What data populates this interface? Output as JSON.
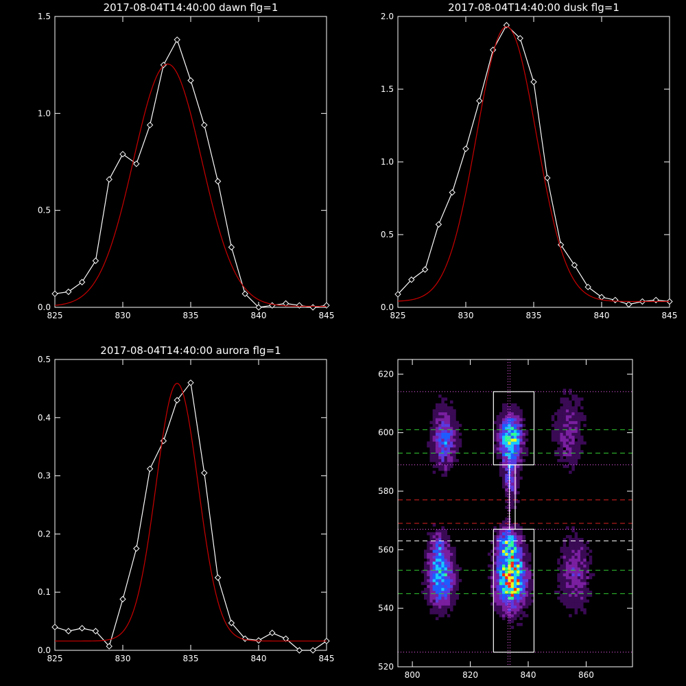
{
  "chart_data": [
    {
      "type": "line",
      "title": "2017-08-04T14:40:00 dawn flg=1",
      "xlim": [
        825,
        845
      ],
      "ylim": [
        0,
        1.5
      ],
      "xticks": [
        825,
        830,
        835,
        840,
        845
      ],
      "xtick_labels": [
        "825",
        "830",
        "835",
        "840",
        "845"
      ],
      "yticks": [
        0,
        0.5,
        1.0,
        1.5
      ],
      "ytick_labels": [
        "0.0",
        "0.5",
        "1.0",
        "1.5"
      ],
      "series": [
        {
          "style": "data",
          "color": "#ffffff",
          "marker": "diamond",
          "x": [
            825,
            826,
            827,
            828,
            829,
            830,
            831,
            832,
            833,
            834,
            835,
            836,
            837,
            838,
            839,
            840,
            841,
            842,
            843,
            844,
            845
          ],
          "y": [
            0.07,
            0.08,
            0.13,
            0.24,
            0.66,
            0.79,
            0.74,
            0.94,
            1.25,
            1.38,
            1.17,
            0.94,
            0.65,
            0.31,
            0.07,
            0.0,
            0.01,
            0.02,
            0.01,
            0.0,
            0.01
          ]
        },
        {
          "style": "fit",
          "color": "#cc0000",
          "gaussian": {
            "amp": 1.25,
            "center": 833.3,
            "sigma": 2.5,
            "base": 0.005
          }
        }
      ]
    },
    {
      "type": "line",
      "title": "2017-08-04T14:40:00 dusk flg=1",
      "xlim": [
        825,
        845
      ],
      "ylim": [
        0,
        2.0
      ],
      "xticks": [
        825,
        830,
        835,
        840,
        845
      ],
      "xtick_labels": [
        "825",
        "830",
        "835",
        "840",
        "845"
      ],
      "yticks": [
        0,
        0.5,
        1.0,
        1.5,
        2.0
      ],
      "ytick_labels": [
        "0.0",
        "0.5",
        "1.0",
        "1.5",
        "2.0"
      ],
      "series": [
        {
          "style": "data",
          "color": "#ffffff",
          "marker": "diamond",
          "x": [
            825,
            826,
            827,
            828,
            829,
            830,
            831,
            832,
            833,
            834,
            835,
            836,
            837,
            838,
            839,
            840,
            841,
            842,
            843,
            844,
            845
          ],
          "y": [
            0.09,
            0.19,
            0.26,
            0.57,
            0.79,
            1.09,
            1.42,
            1.77,
            1.94,
            1.85,
            1.55,
            0.89,
            0.43,
            0.29,
            0.14,
            0.07,
            0.05,
            0.02,
            0.04,
            0.05,
            0.04
          ]
        },
        {
          "style": "fit",
          "color": "#cc0000",
          "gaussian": {
            "amp": 1.89,
            "center": 833.0,
            "sigma": 2.2,
            "base": 0.04
          }
        }
      ]
    },
    {
      "type": "line",
      "title": "2017-08-04T14:40:00 aurora flg=1",
      "xlim": [
        825,
        845
      ],
      "ylim": [
        0,
        0.5
      ],
      "xticks": [
        825,
        830,
        835,
        840,
        845
      ],
      "xtick_labels": [
        "825",
        "830",
        "835",
        "840",
        "845"
      ],
      "yticks": [
        0,
        0.1,
        0.2,
        0.3,
        0.4,
        0.5
      ],
      "ytick_labels": [
        "0.0",
        "0.1",
        "0.2",
        "0.3",
        "0.4",
        "0.5"
      ],
      "series": [
        {
          "style": "data",
          "color": "#ffffff",
          "marker": "diamond",
          "x": [
            825,
            826,
            827,
            828,
            829,
            830,
            831,
            832,
            833,
            834,
            835,
            836,
            837,
            838,
            839,
            840,
            841,
            842,
            843,
            844,
            845
          ],
          "y": [
            0.04,
            0.033,
            0.038,
            0.033,
            0.007,
            0.088,
            0.175,
            0.312,
            0.36,
            0.43,
            0.46,
            0.305,
            0.125,
            0.047,
            0.02,
            0.017,
            0.03,
            0.02,
            0.0,
            0.0,
            0.016
          ]
        },
        {
          "style": "fit",
          "color": "#cc0000",
          "gaussian": {
            "amp": 0.443,
            "center": 834.0,
            "sigma": 1.55,
            "base": 0.016
          }
        }
      ]
    },
    {
      "type": "heatmap",
      "title": "",
      "xlim": [
        795,
        876
      ],
      "ylim": [
        520,
        625
      ],
      "xticks": [
        800,
        820,
        840,
        860
      ],
      "xtick_labels": [
        "800",
        "820",
        "840",
        "860"
      ],
      "yticks": [
        520,
        540,
        560,
        580,
        600,
        620
      ],
      "ytick_labels": [
        "520",
        "540",
        "560",
        "580",
        "600",
        "620"
      ],
      "colormap": [
        "#000000",
        "#3a0a55",
        "#7a1fa0",
        "#5a3be0",
        "#1f5cff",
        "#19c8ff",
        "#30ff90",
        "#e8ff20",
        "#ff2a10"
      ],
      "blobs": [
        {
          "cx": 811,
          "cy": 598,
          "sx": 2.6,
          "sy": 6.5,
          "amp": 0.45
        },
        {
          "cx": 810,
          "cy": 550,
          "sx": 3.0,
          "sy": 6.0,
          "amp": 0.6
        },
        {
          "cx": 809,
          "cy": 560,
          "sx": 2.0,
          "sy": 4.0,
          "amp": 0.35
        },
        {
          "cx": 834,
          "cy": 598,
          "sx": 2.6,
          "sy": 5.5,
          "amp": 0.72
        },
        {
          "cx": 834,
          "cy": 585,
          "sx": 1.6,
          "sy": 6.0,
          "amp": 0.35
        },
        {
          "cx": 834,
          "cy": 550,
          "sx": 3.3,
          "sy": 6.5,
          "amp": 1.0
        },
        {
          "cx": 833,
          "cy": 562,
          "sx": 2.5,
          "sy": 4.0,
          "amp": 0.55
        },
        {
          "cx": 854,
          "cy": 600,
          "sx": 3.5,
          "sy": 8.0,
          "amp": 0.2
        },
        {
          "cx": 856,
          "cy": 552,
          "sx": 3.5,
          "sy": 8.0,
          "amp": 0.25
        }
      ],
      "vertical_lines": [
        {
          "x": 833,
          "color": "#ff66ff",
          "style": "dotted"
        }
      ],
      "horizontal_lines": [
        {
          "y": 614,
          "color": "#ff66ff",
          "style": "dotted"
        },
        {
          "y": 589,
          "color": "#ff66ff",
          "style": "dotted"
        },
        {
          "y": 567,
          "color": "#ff66ff",
          "style": "dotted"
        },
        {
          "y": 525,
          "color": "#ff66ff",
          "style": "dotted"
        },
        {
          "y": 601,
          "color": "#33cc33",
          "style": "dashed"
        },
        {
          "y": 593,
          "color": "#33cc33",
          "style": "dashed"
        },
        {
          "y": 553,
          "color": "#33cc33",
          "style": "dashed"
        },
        {
          "y": 545,
          "color": "#33cc33",
          "style": "dashed"
        },
        {
          "y": 577,
          "color": "#dd2222",
          "style": "dashed"
        },
        {
          "y": 569,
          "color": "#dd2222",
          "style": "dashed"
        },
        {
          "y": 563,
          "color": "#ffffff",
          "style": "dashed"
        }
      ],
      "boxes": [
        {
          "x0": 828,
          "x1": 842,
          "y0": 589,
          "y1": 614,
          "color": "#ffffff"
        },
        {
          "x0": 828,
          "x1": 842,
          "y0": 525,
          "y1": 567,
          "color": "#ffffff"
        }
      ],
      "connector": {
        "x0": 833.5,
        "x1": 835.5,
        "y0": 567,
        "y1": 589,
        "color": "#ffffff"
      }
    }
  ]
}
